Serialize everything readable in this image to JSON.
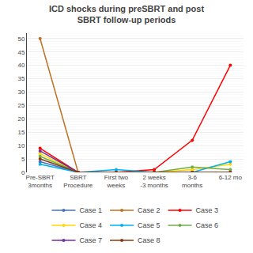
{
  "chart_data": {
    "type": "line",
    "title": "ICD shocks during preSBRT and post SBRT follow-up periods",
    "categories": [
      "Pre-SBRT\n3months",
      "SBRT Procedure",
      "First two weeks",
      "2 weeks -3 months",
      "3-6 months",
      "6-12 mo"
    ],
    "series": [
      {
        "name": "Case 1",
        "color": "#4472C4",
        "marker": "circle",
        "values": [
          4,
          0,
          0,
          0,
          0,
          0
        ]
      },
      {
        "name": "Case 2",
        "color": "#C07020",
        "marker": "circle",
        "values": [
          50,
          0,
          0,
          0,
          0,
          0
        ]
      },
      {
        "name": "Case 3",
        "color": "#FF0000",
        "marker": "circle",
        "values": [
          9,
          0,
          0,
          1,
          12,
          40
        ]
      },
      {
        "name": "Case 4",
        "color": "#FFD700",
        "marker": "circle",
        "values": [
          7,
          0,
          0,
          0,
          1,
          3
        ]
      },
      {
        "name": "Case 5",
        "color": "#00B0F0",
        "marker": "circle",
        "values": [
          3,
          0,
          1,
          0,
          0,
          4
        ]
      },
      {
        "name": "Case 6",
        "color": "#70AD47",
        "marker": "circle",
        "values": [
          6,
          0,
          0,
          0,
          2,
          1
        ]
      },
      {
        "name": "Case 7",
        "color": "#7030A0",
        "marker": "circle",
        "values": [
          8,
          0,
          0,
          0,
          0,
          0
        ]
      },
      {
        "name": "Case 8",
        "color": "#843C0C",
        "marker": "circle",
        "values": [
          5,
          0,
          0,
          0,
          0,
          0
        ]
      }
    ],
    "ylim": [
      0,
      52
    ],
    "yticks": [
      0,
      5,
      10,
      15,
      20,
      25,
      30,
      35,
      40,
      45,
      50
    ],
    "grid": true,
    "legend": "bottom"
  }
}
